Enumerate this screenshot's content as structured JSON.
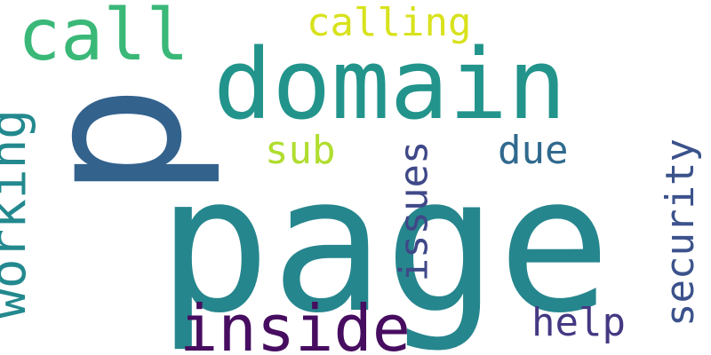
{
  "words": [
    {
      "text": "page",
      "color": "#26868d",
      "orientation": "horizontal"
    },
    {
      "text": "p",
      "color": "#33628d",
      "orientation": "vertical"
    },
    {
      "text": "domain",
      "color": "#22948b",
      "orientation": "horizontal"
    },
    {
      "text": "call",
      "color": "#3ab878",
      "orientation": "horizontal"
    },
    {
      "text": "calling",
      "color": "#d8e21c",
      "orientation": "horizontal"
    },
    {
      "text": "working",
      "color": "#23898e",
      "orientation": "vertical"
    },
    {
      "text": "inside",
      "color": "#470d60",
      "orientation": "horizontal"
    },
    {
      "text": "sub",
      "color": "#b0dd2f",
      "orientation": "horizontal"
    },
    {
      "text": "issues",
      "color": "#3f4888",
      "orientation": "vertical"
    },
    {
      "text": "due",
      "color": "#30698e",
      "orientation": "horizontal"
    },
    {
      "text": "security",
      "color": "#3b528b",
      "orientation": "vertical"
    },
    {
      "text": "help",
      "color": "#453882",
      "orientation": "horizontal"
    }
  ]
}
